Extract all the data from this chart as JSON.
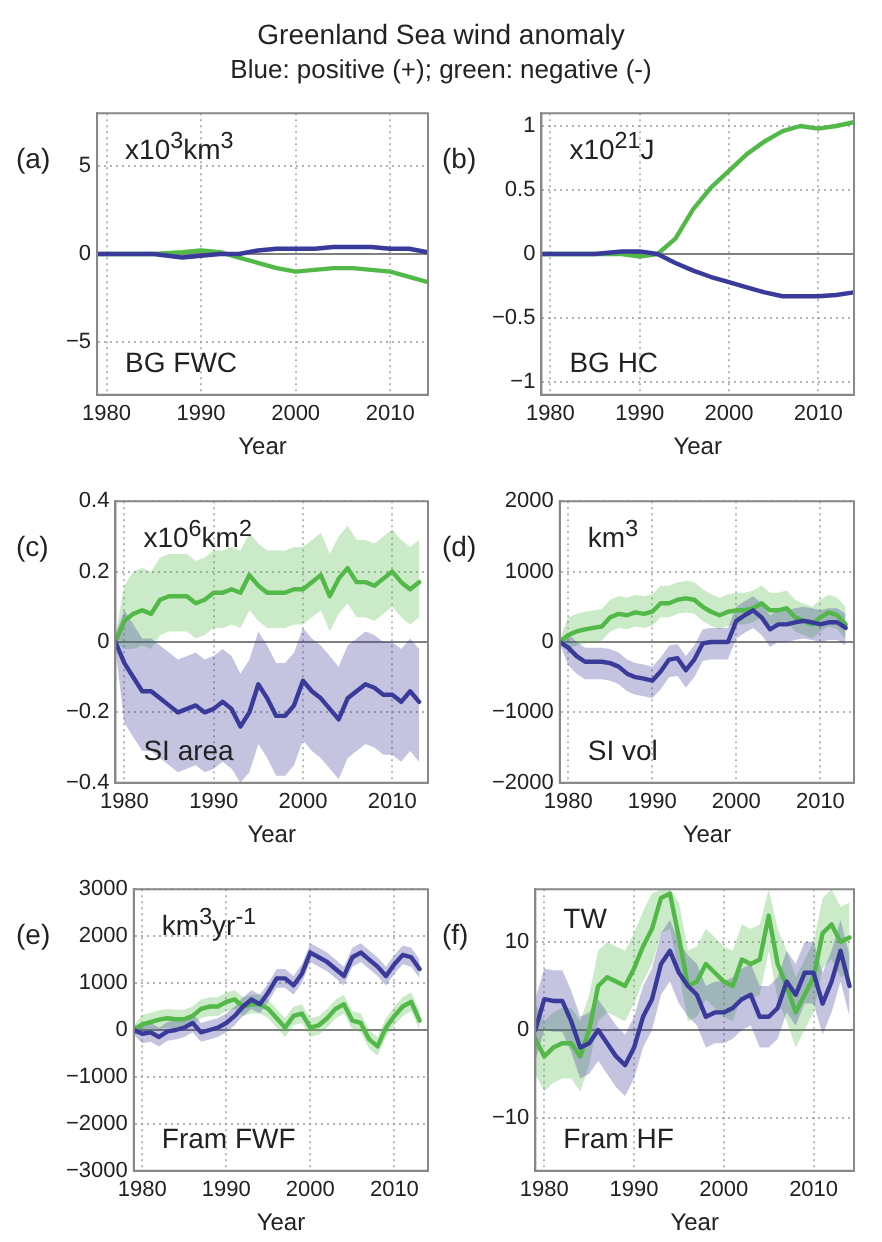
{
  "chart_data": [
    {
      "type": "line",
      "title": "Greenland Sea wind anomaly",
      "subtitle": "Blue: positive (+); green: negative (-)",
      "xlabel": "Year",
      "annotations": [
        "(a)",
        "x10$^{3}$km$^{3}$",
        "BG FWC"
      ],
      "xlim": [
        1979,
        2014
      ],
      "xticks": [
        1980,
        1990,
        2000,
        2010
      ],
      "ylim": [
        -8,
        8
      ],
      "yticks": [
        -5,
        0,
        5
      ],
      "grid": true,
      "ref_lines": [
        {
          "axis": "y",
          "value": 0,
          "color": "#808080"
        }
      ],
      "x": [
        1979,
        1982,
        1985,
        1988,
        1990,
        1992,
        1994,
        1996,
        1998,
        2000,
        2002,
        2004,
        2006,
        2008,
        2010,
        2012,
        2014
      ],
      "series": [
        {
          "color": "#3a3a9a",
          "values": [
            0,
            0,
            0,
            -0.2,
            -0.1,
            0,
            0,
            0.2,
            0.3,
            0.3,
            0.3,
            0.4,
            0.4,
            0.4,
            0.3,
            0.3,
            0.1
          ]
        },
        {
          "color": "#52b848",
          "values": [
            0,
            0,
            0,
            0.1,
            0.2,
            0.1,
            -0.2,
            -0.5,
            -0.8,
            -1.0,
            -0.9,
            -0.8,
            -0.8,
            -0.9,
            -1.0,
            -1.3,
            -1.6
          ]
        }
      ]
    },
    {
      "type": "line",
      "xlabel": "Year",
      "annotations": [
        "(b)",
        "x10$^{21}$J",
        "BG HC"
      ],
      "xlim": [
        1979,
        2014
      ],
      "xticks": [
        1980,
        1990,
        2000,
        2010
      ],
      "ylim": [
        -1.1,
        1.1
      ],
      "yticks": [
        -1,
        -0.5,
        0,
        0.5,
        1
      ],
      "grid": true,
      "ref_lines": [
        {
          "axis": "y",
          "value": 0,
          "color": "#808080"
        }
      ],
      "x": [
        1979,
        1985,
        1988,
        1990,
        1992,
        1994,
        1996,
        1998,
        2000,
        2002,
        2004,
        2006,
        2008,
        2010,
        2012,
        2014
      ],
      "series": [
        {
          "color": "#3a3a9a",
          "values": [
            0,
            0,
            0.02,
            0.02,
            0,
            -0.07,
            -0.13,
            -0.18,
            -0.22,
            -0.26,
            -0.3,
            -0.33,
            -0.33,
            -0.33,
            -0.32,
            -0.3
          ]
        },
        {
          "color": "#52b848",
          "values": [
            0,
            0,
            0,
            -0.02,
            0,
            0.12,
            0.35,
            0.52,
            0.65,
            0.78,
            0.88,
            0.96,
            1.0,
            0.98,
            1.0,
            1.03
          ]
        }
      ]
    },
    {
      "type": "line",
      "xlabel": "Year",
      "annotations": [
        "(c)",
        "x10$^{6}$km$^{2}$",
        "SI area"
      ],
      "xlim": [
        1979,
        2014
      ],
      "xticks": [
        1980,
        1990,
        2000,
        2010
      ],
      "ylim": [
        -0.4,
        0.4
      ],
      "yticks": [
        -0.4,
        -0.2,
        0,
        0.2,
        0.4
      ],
      "grid": true,
      "ref_lines": [
        {
          "axis": "y",
          "value": 0,
          "color": "#808080"
        }
      ],
      "x": [
        1979,
        1980,
        1981,
        1982,
        1983,
        1984,
        1985,
        1986,
        1987,
        1988,
        1989,
        1990,
        1991,
        1992,
        1993,
        1994,
        1995,
        1996,
        1997,
        1998,
        1999,
        2000,
        2001,
        2002,
        2003,
        2004,
        2005,
        2006,
        2007,
        2008,
        2009,
        2010,
        2011,
        2012,
        2013
      ],
      "series": [
        {
          "color": "#3a3a9a",
          "values": [
            0,
            -0.06,
            -0.1,
            -0.14,
            -0.14,
            -0.16,
            -0.18,
            -0.2,
            -0.19,
            -0.18,
            -0.2,
            -0.19,
            -0.17,
            -0.19,
            -0.24,
            -0.2,
            -0.12,
            -0.16,
            -0.21,
            -0.21,
            -0.18,
            -0.11,
            -0.14,
            -0.16,
            -0.19,
            -0.22,
            -0.16,
            -0.14,
            -0.12,
            -0.13,
            -0.15,
            -0.15,
            -0.17,
            -0.14,
            -0.17
          ],
          "upper": [
            0.02,
            0.09,
            0.05,
            0.01,
            0.01,
            -0.01,
            -0.03,
            -0.05,
            -0.04,
            -0.03,
            -0.05,
            -0.04,
            -0.02,
            -0.04,
            -0.09,
            -0.05,
            0.03,
            -0.01,
            -0.06,
            -0.06,
            -0.03,
            0.04,
            0.01,
            -0.01,
            -0.04,
            -0.07,
            -0.01,
            0.01,
            0.03,
            0.02,
            0,
            0,
            -0.02,
            0.01,
            -0.02
          ],
          "lower": [
            -0.02,
            -0.23,
            -0.27,
            -0.31,
            -0.31,
            -0.33,
            -0.35,
            -0.37,
            -0.36,
            -0.35,
            -0.37,
            -0.36,
            -0.34,
            -0.36,
            -0.4,
            -0.37,
            -0.29,
            -0.33,
            -0.38,
            -0.38,
            -0.35,
            -0.28,
            -0.31,
            -0.33,
            -0.36,
            -0.39,
            -0.33,
            -0.31,
            -0.29,
            -0.3,
            -0.32,
            -0.32,
            -0.34,
            -0.31,
            -0.34
          ]
        },
        {
          "color": "#52b848",
          "values": [
            0,
            0.06,
            0.08,
            0.09,
            0.08,
            0.12,
            0.13,
            0.13,
            0.13,
            0.11,
            0.12,
            0.14,
            0.14,
            0.15,
            0.14,
            0.19,
            0.16,
            0.14,
            0.14,
            0.14,
            0.15,
            0.15,
            0.17,
            0.19,
            0.13,
            0.18,
            0.21,
            0.17,
            0.17,
            0.16,
            0.18,
            0.2,
            0.17,
            0.15,
            0.17
          ],
          "upper": [
            0.02,
            0.16,
            0.2,
            0.21,
            0.2,
            0.24,
            0.25,
            0.25,
            0.25,
            0.23,
            0.24,
            0.26,
            0.26,
            0.27,
            0.26,
            0.31,
            0.28,
            0.26,
            0.26,
            0.26,
            0.27,
            0.27,
            0.29,
            0.31,
            0.25,
            0.3,
            0.33,
            0.29,
            0.29,
            0.28,
            0.3,
            0.32,
            0.29,
            0.27,
            0.29
          ],
          "lower": [
            0,
            -0.02,
            -0.02,
            -0.01,
            -0.02,
            0.02,
            0.03,
            0.03,
            0.03,
            0.01,
            0.02,
            0.04,
            0.04,
            0.05,
            0.04,
            0.09,
            0.06,
            0.04,
            0.04,
            0.04,
            0.05,
            0.05,
            0.07,
            0.09,
            0.03,
            0.08,
            0.11,
            0.07,
            0.07,
            0.06,
            0.08,
            0.1,
            0.07,
            0.05,
            0.07
          ]
        }
      ]
    },
    {
      "type": "line",
      "xlabel": "Year",
      "annotations": [
        "(d)",
        "km$^{3}$",
        "SI vol"
      ],
      "xlim": [
        1979,
        2014
      ],
      "xticks": [
        1980,
        1990,
        2000,
        2010
      ],
      "ylim": [
        -2000,
        2000
      ],
      "yticks": [
        -2000,
        -1000,
        0,
        1000,
        2000
      ],
      "grid": true,
      "ref_lines": [
        {
          "axis": "y",
          "value": 0,
          "color": "#808080"
        }
      ],
      "x": [
        1979,
        1980,
        1981,
        1982,
        1983,
        1984,
        1985,
        1986,
        1987,
        1988,
        1989,
        1990,
        1991,
        1992,
        1993,
        1994,
        1995,
        1996,
        1997,
        1998,
        1999,
        2000,
        2001,
        2002,
        2003,
        2004,
        2005,
        2006,
        2007,
        2008,
        2009,
        2010,
        2011,
        2012,
        2013
      ],
      "series": [
        {
          "color": "#3a3a9a",
          "values": [
            0,
            -80,
            -200,
            -280,
            -280,
            -280,
            -300,
            -350,
            -450,
            -500,
            -520,
            -550,
            -420,
            -250,
            -230,
            -400,
            -250,
            -20,
            0,
            0,
            0,
            300,
            380,
            450,
            350,
            180,
            250,
            250,
            280,
            300,
            280,
            250,
            280,
            280,
            200
          ],
          "upper": [
            20,
            120,
            0,
            -80,
            -80,
            -80,
            -100,
            -150,
            -250,
            -300,
            -320,
            -350,
            -220,
            -50,
            -30,
            -200,
            -50,
            180,
            200,
            200,
            200,
            500,
            580,
            650,
            550,
            380,
            450,
            450,
            480,
            500,
            480,
            450,
            480,
            480,
            400
          ],
          "lower": [
            -20,
            -330,
            -450,
            -530,
            -530,
            -530,
            -550,
            -600,
            -700,
            -750,
            -770,
            -800,
            -670,
            -500,
            -480,
            -650,
            -500,
            -270,
            -250,
            -250,
            -250,
            50,
            130,
            200,
            100,
            -70,
            0,
            0,
            30,
            50,
            30,
            0,
            30,
            30,
            -50
          ]
        },
        {
          "color": "#52b848",
          "values": [
            0,
            100,
            150,
            180,
            200,
            220,
            350,
            400,
            380,
            420,
            400,
            430,
            550,
            550,
            600,
            620,
            600,
            500,
            430,
            380,
            430,
            450,
            450,
            480,
            550,
            450,
            450,
            480,
            350,
            300,
            250,
            350,
            420,
            380,
            250
          ],
          "upper": [
            50,
            350,
            400,
            430,
            450,
            470,
            600,
            650,
            630,
            670,
            650,
            680,
            800,
            800,
            850,
            870,
            850,
            750,
            680,
            630,
            680,
            700,
            700,
            730,
            800,
            700,
            700,
            730,
            600,
            550,
            500,
            600,
            670,
            630,
            500
          ],
          "lower": [
            -20,
            -100,
            -50,
            -20,
            0,
            20,
            150,
            200,
            180,
            220,
            200,
            230,
            350,
            350,
            400,
            420,
            400,
            300,
            230,
            180,
            230,
            250,
            250,
            280,
            350,
            250,
            250,
            280,
            150,
            100,
            50,
            150,
            220,
            180,
            50
          ]
        }
      ]
    },
    {
      "type": "line",
      "xlabel": "Year",
      "annotations": [
        "(e)",
        "km$^{3}$yr$^{-1}$",
        "Fram FWF"
      ],
      "xlim": [
        1979,
        2014
      ],
      "xticks": [
        1980,
        1990,
        2000,
        2010
      ],
      "ylim": [
        -3000,
        3000
      ],
      "yticks": [
        -3000,
        -2000,
        -1000,
        0,
        1000,
        2000,
        3000
      ],
      "grid": true,
      "ref_lines": [
        {
          "axis": "y",
          "value": 0,
          "color": "#808080"
        }
      ],
      "x": [
        1979,
        1980,
        1981,
        1982,
        1983,
        1984,
        1985,
        1986,
        1987,
        1988,
        1989,
        1990,
        1991,
        1992,
        1993,
        1994,
        1995,
        1996,
        1997,
        1998,
        1999,
        2000,
        2001,
        2002,
        2003,
        2004,
        2005,
        2006,
        2007,
        2008,
        2009,
        2010,
        2011,
        2012,
        2013
      ],
      "series": [
        {
          "color": "#3a3a9a",
          "values": [
            0,
            -80,
            -50,
            -150,
            -30,
            0,
            50,
            150,
            -50,
            0,
            50,
            150,
            300,
            500,
            650,
            550,
            800,
            1100,
            1100,
            950,
            1200,
            1650,
            1550,
            1450,
            1300,
            1150,
            1550,
            1650,
            1500,
            1350,
            1150,
            1400,
            1600,
            1550,
            1300
          ],
          "upper": [
            100,
            120,
            150,
            50,
            170,
            200,
            250,
            350,
            150,
            200,
            250,
            350,
            500,
            700,
            850,
            750,
            1000,
            1300,
            1300,
            1150,
            1400,
            1850,
            1750,
            1650,
            1500,
            1350,
            1750,
            1850,
            1700,
            1550,
            1350,
            1600,
            1800,
            1750,
            1500
          ],
          "lower": [
            -100,
            -280,
            -250,
            -350,
            -230,
            -200,
            -150,
            -50,
            -250,
            -200,
            -150,
            -50,
            100,
            300,
            450,
            350,
            600,
            900,
            900,
            750,
            1000,
            1450,
            1350,
            1250,
            1100,
            950,
            1350,
            1450,
            1300,
            1150,
            950,
            1200,
            1400,
            1350,
            1100
          ]
        },
        {
          "color": "#52b848",
          "values": [
            0,
            120,
            170,
            220,
            250,
            230,
            230,
            300,
            450,
            500,
            500,
            600,
            650,
            500,
            550,
            550,
            450,
            250,
            50,
            300,
            350,
            50,
            100,
            250,
            450,
            550,
            200,
            150,
            -200,
            -350,
            50,
            300,
            500,
            600,
            200
          ],
          "upper": [
            100,
            320,
            370,
            420,
            450,
            430,
            430,
            500,
            650,
            700,
            700,
            800,
            850,
            700,
            750,
            750,
            650,
            450,
            250,
            500,
            550,
            250,
            300,
            450,
            650,
            750,
            400,
            350,
            0,
            -150,
            250,
            500,
            700,
            800,
            400
          ],
          "lower": [
            -100,
            -80,
            -30,
            20,
            50,
            30,
            30,
            100,
            250,
            300,
            300,
            400,
            450,
            300,
            350,
            350,
            250,
            50,
            -150,
            100,
            150,
            -150,
            -100,
            50,
            250,
            350,
            0,
            -50,
            -400,
            -550,
            -150,
            100,
            300,
            400,
            0
          ]
        }
      ]
    },
    {
      "type": "line",
      "xlabel": "Year",
      "annotations": [
        "(f)",
        "TW",
        "Fram HF"
      ],
      "xlim": [
        1979,
        2014.5
      ],
      "xticks": [
        1980,
        1990,
        2000,
        2010
      ],
      "ylim": [
        -16,
        16
      ],
      "yticks": [
        -10,
        0,
        10
      ],
      "grid": true,
      "ref_lines": [
        {
          "axis": "y",
          "value": 0,
          "color": "#808080"
        }
      ],
      "x": [
        1979,
        1980,
        1981,
        1982,
        1983,
        1984,
        1985,
        1986,
        1987,
        1988,
        1989,
        1990,
        1991,
        1992,
        1993,
        1994,
        1995,
        1996,
        1997,
        1998,
        1999,
        2000,
        2001,
        2002,
        2003,
        2004,
        2005,
        2006,
        2007,
        2008,
        2009,
        2010,
        2011,
        2012,
        2013,
        2014
      ],
      "series": [
        {
          "color": "#3a3a9a",
          "values": [
            0,
            3.5,
            3.3,
            3.3,
            1,
            -2,
            -1.5,
            0,
            -1.5,
            -3,
            -4,
            -2,
            1.5,
            3.5,
            7.5,
            9,
            6.5,
            5,
            4,
            1.5,
            2,
            2,
            2.5,
            3.5,
            4,
            1.5,
            1.5,
            2.5,
            5.5,
            4,
            6.5,
            6.5,
            3,
            5.5,
            9,
            5
          ],
          "upper": [
            3.5,
            7,
            6.8,
            6.8,
            4.5,
            1.5,
            2,
            3.5,
            2,
            0.5,
            -0.5,
            1.5,
            5,
            7,
            11,
            12.5,
            10,
            8.5,
            7.5,
            5,
            5.5,
            5.5,
            6,
            7,
            7.5,
            5,
            5,
            6,
            9,
            7.5,
            10,
            10,
            6.5,
            9,
            12.5,
            8.5
          ],
          "lower": [
            -3.5,
            0,
            -0.2,
            -0.2,
            -2.5,
            -5.5,
            -5,
            -3.5,
            -5,
            -6.5,
            -7.5,
            -5.5,
            -2,
            0,
            4,
            5.5,
            3,
            1.5,
            0.5,
            -2,
            -1.5,
            -1.5,
            -1,
            0,
            0.5,
            -2,
            -2,
            -1,
            2,
            0.5,
            3,
            3,
            -0.5,
            2,
            5.5,
            1.5
          ]
        },
        {
          "color": "#52b848",
          "values": [
            -1,
            -3,
            -2,
            -1.5,
            -1.5,
            -3,
            0,
            5,
            6,
            5.5,
            5,
            7,
            9.5,
            11.5,
            15,
            15.5,
            10.5,
            5,
            5.5,
            7.5,
            6.5,
            5.5,
            5,
            8,
            7.5,
            8,
            13,
            7.5,
            5,
            2,
            4,
            6,
            11,
            12,
            10,
            10.5
          ],
          "upper": [
            3,
            1,
            2,
            2.5,
            2.5,
            1,
            4,
            9,
            10,
            9.5,
            9,
            11,
            13.5,
            15.5,
            16,
            16,
            14.5,
            9,
            9.5,
            11.5,
            10.5,
            9.5,
            9,
            12,
            11.5,
            12,
            16,
            11.5,
            9,
            6,
            8,
            10,
            15,
            16,
            14,
            14.5
          ],
          "lower": [
            -5,
            -7,
            -6,
            -5.5,
            -5.5,
            -7,
            -4,
            1,
            2,
            1.5,
            1,
            3,
            5.5,
            7.5,
            11,
            11.5,
            6.5,
            1,
            1.5,
            3.5,
            2.5,
            1.5,
            1,
            4,
            3.5,
            4,
            9,
            3.5,
            1,
            -2,
            0,
            2,
            7,
            8,
            6,
            6.5
          ]
        }
      ]
    }
  ]
}
